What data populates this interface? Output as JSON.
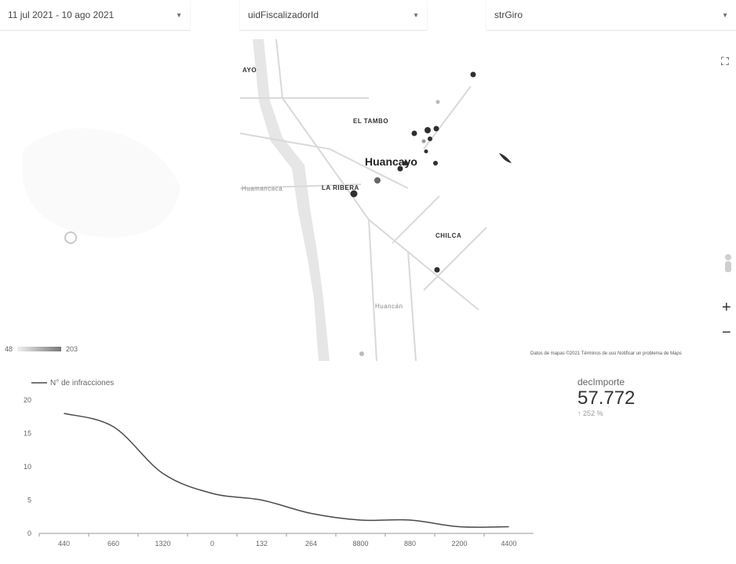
{
  "filters": {
    "date_range": "11 jul 2021 - 10 ago 2021",
    "fiscalizador": "uidFiscalizadorId",
    "giro": "strGiro"
  },
  "map": {
    "labels": {
      "ayo": "AYO",
      "el_tambo": "EL TAMBO",
      "huancayo": "Huancayo",
      "la_ribera": "LA RIBERA",
      "chilca": "CHILCA",
      "huamancaca": "Huamancaca",
      "huancan": "Huancán"
    },
    "controls": {
      "fullscreen": "⛶",
      "zoom_in": "+",
      "zoom_out": "−"
    },
    "attribution": "Datos de mapas ©2021  Términos de uso  Notificar un problema de Maps",
    "legend": {
      "min": "48",
      "max": "203"
    }
  },
  "chart_data": {
    "type": "line",
    "categories": [
      "440",
      "660",
      "1320",
      "0",
      "132",
      "264",
      "8800",
      "880",
      "2200",
      "4400"
    ],
    "series": [
      {
        "name": "N° de infracciones",
        "values": [
          18,
          16,
          9,
          6,
          5,
          3,
          2,
          2,
          1,
          1
        ]
      }
    ],
    "ylim": [
      0,
      20
    ],
    "yticks": [
      0,
      5,
      10,
      15,
      20
    ],
    "legend": "top-left",
    "color": "#4a4a4a"
  },
  "scorecard": {
    "label": "decImporte",
    "value": "57.772",
    "delta": "↑ 252 %"
  }
}
